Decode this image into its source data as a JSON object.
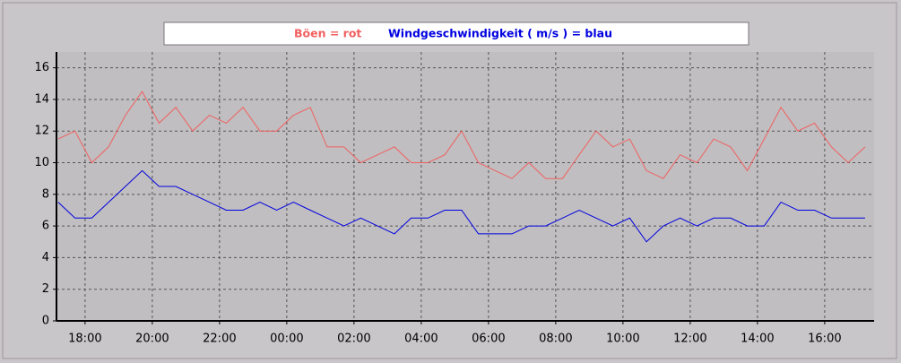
{
  "chart_data": {
    "type": "line",
    "x": [
      17.2,
      17.7,
      18.2,
      18.7,
      19.2,
      19.7,
      20.2,
      20.7,
      21.2,
      21.7,
      22.2,
      22.7,
      23.2,
      23.7,
      24.2,
      24.7,
      25.2,
      25.7,
      26.2,
      26.7,
      27.2,
      27.7,
      28.2,
      28.7,
      29.2,
      29.7,
      30.2,
      30.7,
      31.2,
      31.7,
      32.2,
      32.7,
      33.2,
      33.7,
      34.2,
      34.7,
      35.2,
      35.7,
      36.2,
      36.7,
      37.2,
      37.7,
      38.2,
      38.7,
      39.2,
      39.7,
      40.2,
      40.7,
      41.2
    ],
    "series": [
      {
        "name": "Böen = rot",
        "color": "#f06060",
        "values": [
          11.5,
          12,
          10,
          11,
          13,
          14.5,
          12.5,
          13.5,
          12,
          13,
          12.5,
          13.5,
          12,
          12,
          13,
          13.5,
          11,
          11,
          10,
          10.5,
          11,
          10,
          10,
          10.5,
          12,
          10,
          9.5,
          9,
          10,
          9,
          9,
          10.5,
          12,
          11,
          11.5,
          9.5,
          9,
          10.5,
          10,
          11.5,
          11,
          9.5,
          11.5,
          13.5,
          12,
          12.5,
          11,
          10,
          11
        ]
      },
      {
        "name": "Windgeschwindigkeit ( m/s ) = blau",
        "color": "#0000e0",
        "values": [
          7.5,
          6.5,
          6.5,
          7.5,
          8.5,
          9.5,
          8.5,
          8.5,
          8,
          7.5,
          7,
          7,
          7.5,
          7,
          7.5,
          7,
          6.5,
          6,
          6.5,
          6,
          5.5,
          6.5,
          6.5,
          7,
          7,
          5.5,
          5.5,
          5.5,
          6,
          6,
          6.5,
          7,
          6.5,
          6,
          6.5,
          5,
          6,
          6.5,
          6,
          6.5,
          6.5,
          6,
          6,
          7.5,
          7,
          7,
          6.5,
          6.5,
          6.5
        ]
      }
    ],
    "xlim": [
      17.15,
      41.47
    ],
    "xticks": [
      {
        "value": 18,
        "label": "18:00"
      },
      {
        "value": 20,
        "label": "20:00"
      },
      {
        "value": 22,
        "label": "22:00"
      },
      {
        "value": 24,
        "label": "00:00"
      },
      {
        "value": 26,
        "label": "02:00"
      },
      {
        "value": 28,
        "label": "04:00"
      },
      {
        "value": 30,
        "label": "06:00"
      },
      {
        "value": 32,
        "label": "08:00"
      },
      {
        "value": 34,
        "label": "10:00"
      },
      {
        "value": 36,
        "label": "12:00"
      },
      {
        "value": 38,
        "label": "14:00"
      },
      {
        "value": 40,
        "label": "16:00"
      }
    ],
    "ylim": [
      0,
      17
    ],
    "yticks": [
      0,
      2,
      4,
      6,
      8,
      10,
      12,
      14,
      16
    ],
    "grid": true
  }
}
